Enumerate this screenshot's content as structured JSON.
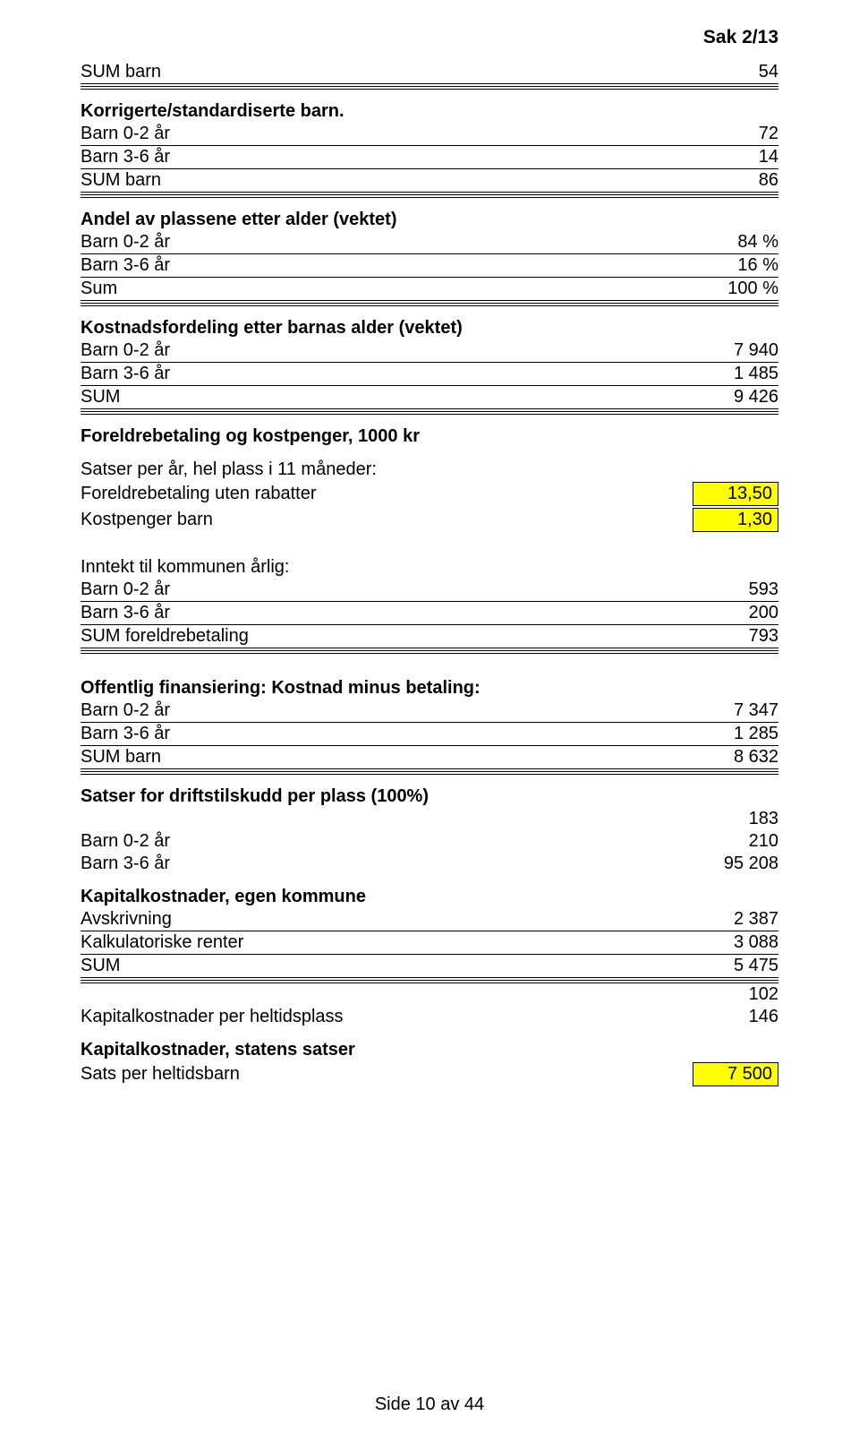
{
  "header": {
    "sak": "Sak 2/13"
  },
  "rows": [
    {
      "l": "SUM barn",
      "r": "54",
      "cls": "thin-bot"
    },
    {
      "cls": "double-bot",
      "l": "",
      "r": ""
    },
    {
      "gap": "sm"
    },
    {
      "l": "Korrigerte/standardiserte barn.",
      "bold": true
    },
    {
      "l": "Barn 0-2 år",
      "r": "72",
      "cls": "thin-bot"
    },
    {
      "l": "Barn 3-6 år",
      "r": "14",
      "cls": "thin-bot"
    },
    {
      "l": "SUM barn",
      "r": "86",
      "cls": "thin-bot"
    },
    {
      "cls": "double-bot",
      "l": "",
      "r": ""
    },
    {
      "gap": "sm"
    },
    {
      "l": "Andel av plassene etter alder (vektet)",
      "bold": true
    },
    {
      "l": "Barn 0-2 år",
      "r": "84 %",
      "cls": "thin-bot"
    },
    {
      "l": "Barn 3-6 år",
      "r": "16 %",
      "cls": "thin-bot"
    },
    {
      "l": "Sum",
      "r": "100 %",
      "cls": "thin-bot"
    },
    {
      "cls": "double-bot",
      "l": "",
      "r": ""
    },
    {
      "gap": "sm"
    },
    {
      "l": "Kostnadsfordeling etter barnas alder (vektet)",
      "bold": true
    },
    {
      "l": "Barn 0-2 år",
      "r": "7 940",
      "cls": "thin-bot"
    },
    {
      "l": "Barn 3-6 år",
      "r": "1 485",
      "cls": "thin-bot"
    },
    {
      "l": "SUM",
      "r": "9 426",
      "cls": "thin-bot"
    },
    {
      "cls": "double-bot",
      "l": "",
      "r": ""
    },
    {
      "gap": "sm"
    },
    {
      "l": "Foreldrebetaling og kostpenger, 1000 kr",
      "bold": true
    },
    {
      "gap": "sm"
    },
    {
      "l": "Satser per år, hel plass i 11 måneder:"
    },
    {
      "l": "Foreldrebetaling uten rabatter",
      "yr": "13,50"
    },
    {
      "l": "Kostpenger barn",
      "yr": "1,30"
    },
    {
      "gap": "md"
    },
    {
      "l": "Inntekt til kommunen årlig:"
    },
    {
      "l": "Barn 0-2 år",
      "r": "593",
      "cls": "thin-bot"
    },
    {
      "l": "Barn 3-6 år",
      "r": "200",
      "cls": "thin-bot"
    },
    {
      "l": "SUM foreldrebetaling",
      "r": "793",
      "cls": "thin-bot"
    },
    {
      "cls": "double-bot",
      "l": "",
      "r": ""
    },
    {
      "gap": "md"
    },
    {
      "l": "Offentlig finansiering: Kostnad minus betaling:",
      "bold": true
    },
    {
      "l": "Barn 0-2 år",
      "r": "7 347",
      "cls": "thin-bot"
    },
    {
      "l": "Barn 3-6 år",
      "r": "1 285",
      "cls": "thin-bot"
    },
    {
      "l": "SUM barn",
      "r": "8 632",
      "cls": "thin-bot"
    },
    {
      "cls": "double-bot",
      "l": "",
      "r": ""
    },
    {
      "gap": "sm"
    },
    {
      "l": "Satser for driftstilskudd per plass (100%)",
      "bold": true
    },
    {
      "l": "",
      "r": "183"
    },
    {
      "l": "Barn 0-2 år",
      "r": "210"
    },
    {
      "l": "Barn 3-6 år",
      "r": "95 208"
    },
    {
      "gap": "sm"
    },
    {
      "l": "Kapitalkostnader, egen kommune",
      "bold": true
    },
    {
      "l": "Avskrivning",
      "r": "2 387",
      "cls": "thin-bot"
    },
    {
      "l": "Kalkulatoriske renter",
      "r": "3 088",
      "cls": "thin-bot"
    },
    {
      "l": "SUM",
      "r": "5 475",
      "cls": "thin-bot"
    },
    {
      "cls": "double-bot",
      "l": "",
      "r": ""
    },
    {
      "l": "",
      "r": "102"
    },
    {
      "l": "Kapitalkostnader per heltidsplass",
      "r": "146"
    },
    {
      "gap": "sm"
    },
    {
      "l": "Kapitalkostnader, statens satser",
      "bold": true
    },
    {
      "l": "Sats per heltidsbarn",
      "yr": "7 500"
    }
  ],
  "footer": "Side 10 av 44"
}
